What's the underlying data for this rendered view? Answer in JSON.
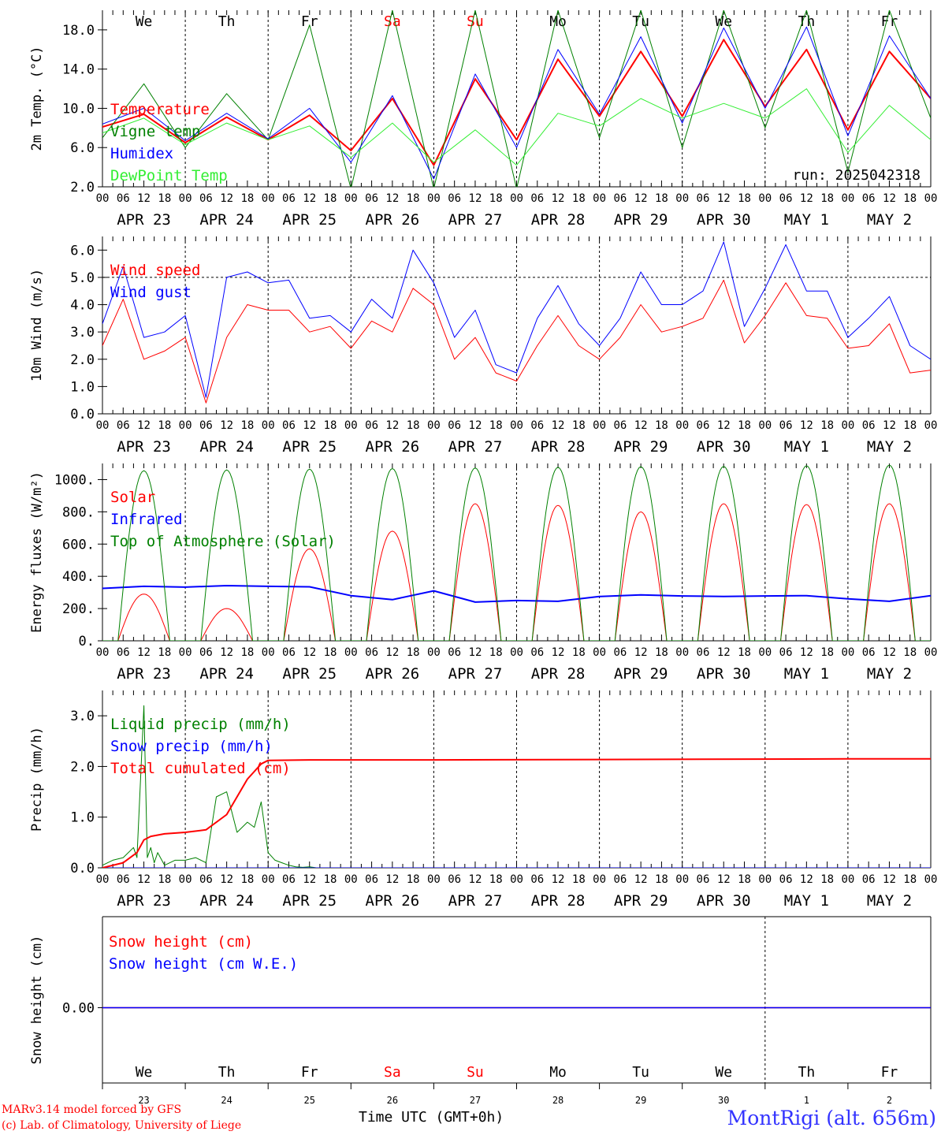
{
  "footer": {
    "model_line": "MARv3.14 model forced by GFS",
    "credit_line": "(c) Lab. of Climatology, University of Liege",
    "x_label": "Time UTC (GMT+0h)",
    "location": "MontRigi (alt. 656m)"
  },
  "colors": {
    "red": "#ff0000",
    "blue": "#0000ff",
    "green": "#008000",
    "lightgreen": "#33ee33",
    "axis": "#000000"
  },
  "time_axis": {
    "hour_ticks": [
      "00",
      "06",
      "12",
      "18"
    ],
    "final_tick": "00",
    "dates": [
      "APR 23",
      "APR 24",
      "APR 25",
      "APR 26",
      "APR 27",
      "APR 28",
      "APR 29",
      "APR 30",
      "MAY  1",
      "MAY  2"
    ],
    "day_names": [
      "We",
      "Th",
      "Fr",
      "Sa",
      "Su",
      "Mo",
      "Tu",
      "We",
      "Th",
      "Fr"
    ],
    "weekend_days": [
      3,
      4
    ],
    "day_numbers": [
      "23",
      "24",
      "25",
      "26",
      "27",
      "28",
      "29",
      "30",
      "1",
      "2"
    ]
  },
  "chart_data": [
    {
      "type": "line",
      "ylabel": "2m Temp. (°C)",
      "ylim": [
        2,
        20
      ],
      "yticks": [
        "2.0",
        "6.0",
        "10.0",
        "14.0",
        "18.0"
      ],
      "ytick_values": [
        2,
        6,
        10,
        14,
        18
      ],
      "annotation": "run: 2025042318",
      "show_day_names": true,
      "x_hours": [
        0,
        12,
        24,
        36,
        48,
        60,
        72,
        84,
        96,
        108,
        120,
        132,
        144,
        156,
        168,
        180,
        192,
        204,
        216,
        228,
        240
      ],
      "series": [
        {
          "name": "Temperature",
          "color": "#ff0000",
          "width": 2,
          "values": [
            8.1,
            9.4,
            6.5,
            9.1,
            6.8,
            9.3,
            5.7,
            11.0,
            4.2,
            13.0,
            6.8,
            15.0,
            9.2,
            15.8,
            9.2,
            17.0,
            10.2,
            16.0,
            7.8,
            15.8,
            11.0
          ]
        },
        {
          "name": "Vigne temp",
          "color": "#008000",
          "width": 1,
          "values": [
            7.0,
            12.5,
            6.0,
            11.5,
            6.8,
            18.5,
            1.8,
            20,
            1.8,
            20,
            1.8,
            20,
            7.0,
            20,
            6.0,
            20,
            8.0,
            20,
            3.5,
            20,
            9.0
          ]
        },
        {
          "name": "Humidex",
          "color": "#0000ff",
          "width": 1,
          "values": [
            8.4,
            10.0,
            6.7,
            9.5,
            6.9,
            10.0,
            4.5,
            11.3,
            2.8,
            13.5,
            6.0,
            16.0,
            9.4,
            17.3,
            8.5,
            18.2,
            10.0,
            18.3,
            7.2,
            17.4,
            11.0
          ]
        },
        {
          "name": "DewPoint Temp",
          "color": "#33ee33",
          "width": 1,
          "values": [
            7.5,
            9.0,
            6.3,
            8.5,
            6.8,
            8.2,
            5.0,
            8.5,
            4.5,
            7.8,
            4.2,
            9.5,
            8.2,
            11.0,
            9.0,
            10.5,
            9.0,
            12.0,
            5.5,
            10.3,
            6.8
          ]
        }
      ]
    },
    {
      "type": "line",
      "ylabel": "10m Wind (m/s)",
      "ylim": [
        0,
        6.5
      ],
      "yticks": [
        "0.0",
        "1.0",
        "2.0",
        "3.0",
        "4.0",
        "5.0",
        "6.0"
      ],
      "ytick_values": [
        0,
        1,
        2,
        3,
        4,
        5,
        6
      ],
      "ref_line": 5.0,
      "x_hours": [
        0,
        6,
        12,
        18,
        24,
        30,
        36,
        42,
        48,
        54,
        60,
        66,
        72,
        78,
        84,
        90,
        96,
        102,
        108,
        114,
        120,
        126,
        132,
        138,
        144,
        150,
        156,
        162,
        168,
        174,
        180,
        186,
        192,
        198,
        204,
        210,
        216,
        222,
        228,
        234,
        240
      ],
      "series": [
        {
          "name": "Wind speed",
          "color": "#ff0000",
          "width": 1,
          "values": [
            2.5,
            4.2,
            2.0,
            2.3,
            2.8,
            0.4,
            2.8,
            4.0,
            3.8,
            3.8,
            3.0,
            3.2,
            2.4,
            3.4,
            3.0,
            4.6,
            4.0,
            2.0,
            2.8,
            1.5,
            1.2,
            2.5,
            3.6,
            2.5,
            2.0,
            2.8,
            4.0,
            3.0,
            3.2,
            3.5,
            4.9,
            2.6,
            3.6,
            4.8,
            3.6,
            3.5,
            2.4,
            2.5,
            3.3,
            1.5,
            1.6
          ]
        },
        {
          "name": "Wind gust",
          "color": "#0000ff",
          "width": 1,
          "values": [
            3.3,
            5.4,
            2.8,
            3.0,
            3.6,
            0.6,
            5.0,
            5.2,
            4.8,
            4.9,
            3.5,
            3.6,
            3.0,
            4.2,
            3.5,
            6.0,
            4.8,
            2.8,
            3.8,
            1.8,
            1.5,
            3.5,
            4.7,
            3.3,
            2.5,
            3.5,
            5.2,
            4.0,
            4.0,
            4.5,
            6.3,
            3.2,
            4.6,
            6.2,
            4.5,
            4.5,
            2.8,
            3.5,
            4.3,
            2.5,
            2.0
          ]
        }
      ]
    },
    {
      "type": "line",
      "ylabel": "Energy fluxes (W/m²)",
      "ylim": [
        0,
        1100
      ],
      "yticks": [
        "0.",
        "200.",
        "400.",
        "600.",
        "800.",
        "1000."
      ],
      "ytick_values": [
        0,
        200,
        400,
        600,
        800,
        1000
      ],
      "diurnal": {
        "sunrise_h": 4.5,
        "sunset_h": 19.5
      },
      "series": [
        {
          "name": "Solar",
          "color": "#ff0000",
          "width": 1,
          "daily_peaks": [
            290,
            200,
            570,
            680,
            850,
            840,
            800,
            850,
            845,
            850
          ]
        },
        {
          "name": "Infrared",
          "color": "#0000ff",
          "width": 2,
          "x_hours": [
            0,
            12,
            24,
            36,
            48,
            60,
            72,
            84,
            96,
            108,
            120,
            132,
            144,
            156,
            168,
            180,
            192,
            204,
            216,
            228,
            240
          ],
          "values": [
            325,
            338,
            333,
            342,
            338,
            335,
            280,
            255,
            310,
            240,
            250,
            245,
            275,
            285,
            278,
            275,
            278,
            280,
            260,
            245,
            280
          ]
        },
        {
          "name": "Top of Atmosphere (Solar)",
          "color": "#008000",
          "width": 1,
          "daily_peaks": [
            1055,
            1060,
            1065,
            1068,
            1072,
            1076,
            1080,
            1082,
            1086,
            1090
          ]
        }
      ]
    },
    {
      "type": "line",
      "ylabel": "Precip (mm/h)",
      "ylim": [
        0,
        3.5
      ],
      "yticks": [
        "0.0",
        "1.0",
        "2.0",
        "3.0"
      ],
      "ytick_values": [
        0,
        1,
        2,
        3
      ],
      "series": [
        {
          "name": "Liquid precip (mm/h)",
          "color": "#008000",
          "width": 1,
          "x_hours": [
            0,
            3,
            6,
            9,
            10,
            12,
            13,
            14,
            15,
            16,
            18,
            21,
            24,
            27,
            30,
            33,
            36,
            39,
            42,
            44,
            46,
            48,
            50,
            52,
            54,
            56,
            58,
            60,
            62,
            66,
            72,
            90,
            240
          ],
          "values": [
            0.05,
            0.15,
            0.2,
            0.4,
            0.2,
            3.2,
            0.2,
            0.4,
            0.1,
            0.3,
            0.05,
            0.15,
            0.15,
            0.2,
            0.1,
            1.4,
            1.5,
            0.7,
            0.9,
            0.8,
            1.3,
            0.3,
            0.15,
            0.1,
            0.05,
            0.02,
            0.01,
            0.02,
            0,
            0,
            0,
            0,
            0
          ]
        },
        {
          "name": "Snow precip (mm/h)",
          "color": "#0000ff",
          "width": 1,
          "x_hours": [
            0,
            240
          ],
          "values": [
            0,
            0
          ]
        },
        {
          "name": "Total cumulated (cm)",
          "color": "#ff0000",
          "width": 2,
          "x_hours": [
            0,
            6,
            10,
            12,
            14,
            18,
            24,
            30,
            36,
            42,
            46,
            48,
            60,
            96,
            216,
            240
          ],
          "values": [
            0.0,
            0.1,
            0.3,
            0.55,
            0.62,
            0.67,
            0.7,
            0.75,
            1.05,
            1.75,
            2.05,
            2.12,
            2.13,
            2.13,
            2.15,
            2.15
          ]
        }
      ]
    },
    {
      "type": "line",
      "ylabel": "Snow height (cm)",
      "yticks": [
        "0.00"
      ],
      "series": [
        {
          "name": "Snow height (cm)",
          "color": "#ff0000",
          "values": [
            0,
            0
          ]
        },
        {
          "name": "Snow height (cm W.E.)",
          "color": "#0000ff",
          "values": [
            0,
            0
          ]
        }
      ]
    }
  ]
}
